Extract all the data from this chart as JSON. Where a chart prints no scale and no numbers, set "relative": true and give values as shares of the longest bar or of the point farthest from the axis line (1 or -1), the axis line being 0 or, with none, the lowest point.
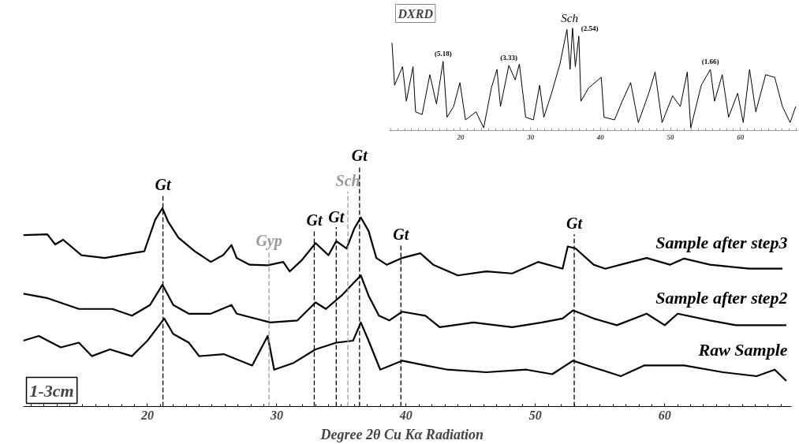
{
  "chart_data": [
    {
      "type": "line",
      "title": "DXRD",
      "relative": true,
      "xlim": [
        9.8,
        68.2
      ],
      "xticks": [
        20,
        30,
        40,
        50,
        60
      ],
      "annotations": [
        {
          "text": "(5.18)",
          "x": 17.5,
          "y": 0.675
        },
        {
          "text": "(3.33)",
          "x": 26.9,
          "y": 0.636
        },
        {
          "text": "Sch",
          "x": 36.0,
          "y": 1.0
        },
        {
          "text": "(2.54)",
          "x": 36.9,
          "y": 0.922
        },
        {
          "text": "(1.66)",
          "x": 55.7,
          "y": 0.597
        }
      ],
      "series": [
        {
          "color": "#000000",
          "x": [
            10.19,
            10.56,
            11.7,
            12.25,
            13.2,
            13.56,
            14.5,
            15.6,
            16.55,
            17.5,
            18.06,
            19.0,
            19.9,
            20.7,
            22.2,
            23.3,
            24.4,
            25.2,
            25.7,
            26.9,
            27.8,
            28.4,
            29.3,
            30.4,
            31.3,
            31.9,
            33.0,
            34.2,
            35.2,
            35.65,
            36.0,
            36.4,
            36.9,
            37.2,
            38.3,
            40.1,
            40.5,
            42.0,
            43.1,
            44.3,
            45.4,
            46.9,
            47.8,
            48.8,
            50.3,
            51.4,
            52.4,
            52.9,
            54.4,
            55.7,
            56.3,
            57.4,
            58.3,
            59.6,
            60.4,
            61.3,
            62.2,
            63.6,
            64.9,
            66.0,
            67.1,
            67.9
          ],
          "values": [
            0.857,
            0.442,
            0.623,
            0.286,
            0.623,
            0.182,
            0.156,
            0.545,
            0.26,
            0.675,
            0.13,
            0.234,
            0.468,
            0.104,
            0.182,
            0.026,
            0.416,
            0.597,
            0.234,
            0.636,
            0.494,
            0.649,
            0.13,
            0.104,
            0.442,
            0.13,
            0.364,
            0.649,
            0.987,
            0.597,
            1.0,
            0.623,
            0.922,
            0.286,
            0.416,
            0.519,
            0.13,
            0.104,
            0.286,
            0.468,
            0.078,
            0.364,
            0.571,
            0.078,
            0.338,
            0.234,
            0.571,
            0.026,
            0.442,
            0.597,
            0.286,
            0.545,
            0.13,
            0.364,
            0.078,
            0.597,
            0.182,
            0.545,
            0.519,
            0.234,
            0.078,
            0.234
          ]
        }
      ]
    },
    {
      "type": "line",
      "relative": true,
      "xlabel": "Degree 2θ    Cu Kα Radiation",
      "xlim": [
        10.4,
        69.8
      ],
      "xticks": [
        20,
        30,
        40,
        50,
        60
      ],
      "annotations": [
        "1-3cm"
      ],
      "ref_lines": [
        {
          "axis": "x",
          "value": 21.2,
          "label": "Gt",
          "color": "#000000",
          "line_style": "dashed"
        },
        {
          "axis": "x",
          "value": 29.4,
          "label": "Gyp",
          "color": "#999999",
          "line_style": "dashed"
        },
        {
          "axis": "x",
          "value": 32.9,
          "label": "Gt",
          "color": "#000000",
          "line_style": "dashed"
        },
        {
          "axis": "x",
          "value": 34.6,
          "label": "Gt",
          "color": "#000000",
          "line_style": "dashed"
        },
        {
          "axis": "x",
          "value": 35.5,
          "label": "Sch",
          "color": "#999999",
          "line_style": "dashed"
        },
        {
          "axis": "x",
          "value": 36.4,
          "label": "Gt",
          "color": "#000000",
          "line_style": "dashed"
        },
        {
          "axis": "x",
          "value": 39.6,
          "label": "Gt",
          "color": "#000000",
          "line_style": "dashed"
        },
        {
          "axis": "x",
          "value": 53.0,
          "label": "Gt",
          "color": "#000000",
          "line_style": "dashed"
        }
      ],
      "series": [
        {
          "name": "Sample after step3",
          "color": "#000000",
          "x": [
            10.4,
            12.26,
            12.87,
            13.48,
            14.9,
            16.7,
            18.8,
            19.76,
            20.6,
            21.16,
            21.6,
            22.4,
            23.66,
            24.9,
            25.85,
            26.5,
            26.9,
            27.9,
            29.3,
            30.5,
            31.0,
            31.95,
            33.0,
            34.0,
            34.6,
            35.4,
            36.0,
            36.5,
            37.1,
            37.7,
            38.5,
            39.7,
            41.1,
            42.1,
            44.0,
            46.2,
            48.2,
            50.2,
            52.1,
            52.5,
            53.1,
            54.5,
            55.4,
            57.4,
            58.6,
            60.4,
            61.5,
            63.5,
            66.5,
            69.1
          ],
          "values": [
            0.864,
            0.868,
            0.817,
            0.841,
            0.763,
            0.749,
            0.773,
            0.783,
            0.942,
            1.0,
            0.932,
            0.851,
            0.783,
            0.729,
            0.763,
            0.814,
            0.749,
            0.715,
            0.712,
            0.729,
            0.681,
            0.739,
            0.824,
            0.763,
            0.834,
            0.797,
            0.898,
            0.953,
            0.885,
            0.749,
            0.715,
            0.749,
            0.773,
            0.715,
            0.661,
            0.681,
            0.671,
            0.729,
            0.695,
            0.807,
            0.797,
            0.715,
            0.695,
            0.729,
            0.749,
            0.715,
            0.746,
            0.715,
            0.695,
            0.695
          ]
        },
        {
          "name": "Sample after step2",
          "color": "#000000",
          "x": [
            10.4,
            12.3,
            14.7,
            17.3,
            18.8,
            20.2,
            21.16,
            22.0,
            23.2,
            24.9,
            26.5,
            26.9,
            29.5,
            31.6,
            33.0,
            33.8,
            35.0,
            36.0,
            36.5,
            37.1,
            37.9,
            38.7,
            39.7,
            41.5,
            42.6,
            45.2,
            48.2,
            50.5,
            52.1,
            52.9,
            54.5,
            56.3,
            58.6,
            60.0,
            61.0,
            63.5,
            65.5,
            67.6,
            69.4
          ],
          "values": [
            0.569,
            0.546,
            0.492,
            0.492,
            0.458,
            0.512,
            0.614,
            0.512,
            0.468,
            0.468,
            0.512,
            0.468,
            0.424,
            0.434,
            0.525,
            0.492,
            0.559,
            0.627,
            0.661,
            0.559,
            0.458,
            0.434,
            0.478,
            0.458,
            0.4,
            0.424,
            0.4,
            0.424,
            0.444,
            0.485,
            0.444,
            0.41,
            0.468,
            0.41,
            0.468,
            0.434,
            0.41,
            0.41,
            0.41
          ]
        },
        {
          "name": "Raw Sample",
          "color": "#000000",
          "x": [
            10.4,
            11.6,
            13.3,
            14.7,
            15.7,
            17.1,
            18.8,
            20.0,
            20.8,
            21.3,
            22.0,
            23.2,
            24.0,
            25.9,
            28.1,
            29.3,
            29.8,
            31.3,
            33.0,
            34.6,
            35.9,
            36.5,
            37.1,
            38.0,
            39.7,
            41.5,
            43.2,
            46.2,
            49.3,
            51.3,
            52.9,
            54.5,
            56.6,
            58.4,
            61.5,
            64.5,
            67.1,
            68.5,
            69.4
          ],
          "values": [
            0.332,
            0.356,
            0.298,
            0.322,
            0.254,
            0.288,
            0.254,
            0.332,
            0.4,
            0.444,
            0.366,
            0.322,
            0.254,
            0.264,
            0.207,
            0.356,
            0.186,
            0.22,
            0.288,
            0.322,
            0.332,
            0.424,
            0.332,
            0.186,
            0.231,
            0.207,
            0.186,
            0.173,
            0.186,
            0.163,
            0.231,
            0.197,
            0.153,
            0.207,
            0.207,
            0.173,
            0.153,
            0.186,
            0.129
          ]
        }
      ]
    }
  ]
}
